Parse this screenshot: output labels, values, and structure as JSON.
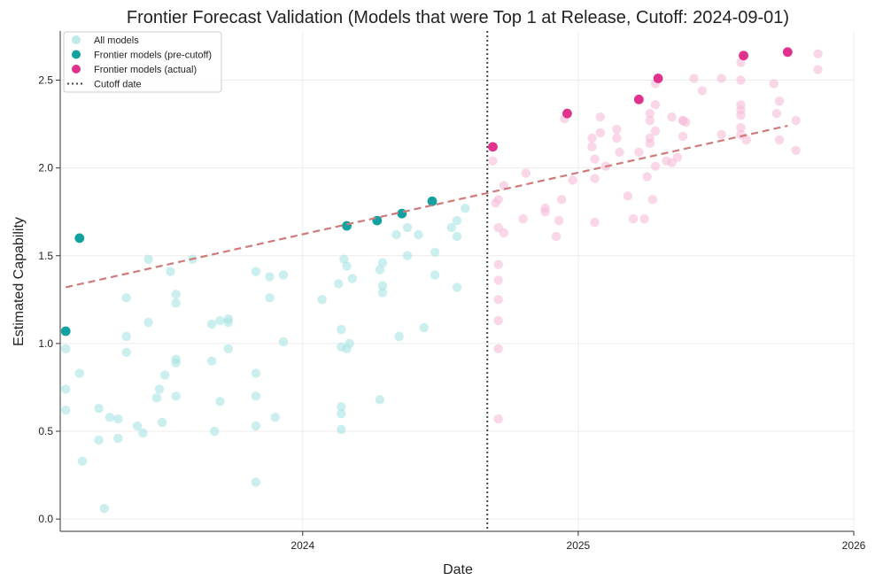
{
  "chart_data": {
    "type": "scatter",
    "title": "Frontier Forecast Validation (Models that were Top 1 at Release, Cutoff: 2024-09-01)",
    "xlabel": "Date",
    "ylabel": "Estimated Capability",
    "xlim": [
      2023.12,
      2026.0
    ],
    "ylim": [
      -0.07,
      2.78
    ],
    "x_ticks": [
      {
        "value": 2024.0,
        "label": "2024"
      },
      {
        "value": 2025.0,
        "label": "2025"
      },
      {
        "value": 2026.0,
        "label": "2026"
      }
    ],
    "y_ticks": [
      {
        "value": 0.0,
        "label": "0.0"
      },
      {
        "value": 0.5,
        "label": "0.5"
      },
      {
        "value": 1.0,
        "label": "1.0"
      },
      {
        "value": 1.5,
        "label": "1.5"
      },
      {
        "value": 2.0,
        "label": "2.0"
      },
      {
        "value": 2.5,
        "label": "2.5"
      }
    ],
    "grid": true,
    "legend_position": "top-left",
    "cutoff": {
      "x": 2024.67,
      "label": "Cutoff date"
    },
    "trend_line": {
      "x": [
        2023.14,
        2025.76
      ],
      "y": [
        1.32,
        2.24
      ]
    },
    "legend": [
      {
        "label": "All models",
        "color": "#a9e3e3",
        "style": "marker-light"
      },
      {
        "label": "Frontier models (pre-cutoff)",
        "color": "#12a1a1",
        "style": "marker"
      },
      {
        "label": "Frontier models (actual)",
        "color": "#e0328c",
        "style": "marker"
      },
      {
        "label": "Cutoff date",
        "color": "#444444",
        "style": "dotted-line"
      }
    ],
    "series": [
      {
        "name": "All models (pre-cutoff)",
        "color": "#a9e3e3",
        "points": [
          [
            2023.14,
            0.97
          ],
          [
            2023.14,
            0.74
          ],
          [
            2023.14,
            0.62
          ],
          [
            2023.19,
            0.83
          ],
          [
            2023.2,
            0.33
          ],
          [
            2023.26,
            0.63
          ],
          [
            2023.26,
            0.45
          ],
          [
            2023.28,
            0.06
          ],
          [
            2023.3,
            0.58
          ],
          [
            2023.33,
            0.46
          ],
          [
            2023.33,
            0.57
          ],
          [
            2023.36,
            1.26
          ],
          [
            2023.36,
            1.04
          ],
          [
            2023.36,
            0.95
          ],
          [
            2023.4,
            0.53
          ],
          [
            2023.42,
            0.49
          ],
          [
            2023.44,
            1.48
          ],
          [
            2023.44,
            1.12
          ],
          [
            2023.47,
            0.69
          ],
          [
            2023.48,
            0.74
          ],
          [
            2023.49,
            0.55
          ],
          [
            2023.5,
            0.82
          ],
          [
            2023.52,
            1.41
          ],
          [
            2023.54,
            1.28
          ],
          [
            2023.54,
            1.23
          ],
          [
            2023.54,
            0.91
          ],
          [
            2023.54,
            0.89
          ],
          [
            2023.54,
            0.7
          ],
          [
            2023.6,
            1.48
          ],
          [
            2023.67,
            1.11
          ],
          [
            2023.67,
            0.9
          ],
          [
            2023.68,
            0.5
          ],
          [
            2023.7,
            1.13
          ],
          [
            2023.7,
            0.67
          ],
          [
            2023.73,
            1.14
          ],
          [
            2023.73,
            1.12
          ],
          [
            2023.73,
            0.97
          ],
          [
            2023.83,
            1.41
          ],
          [
            2023.83,
            0.83
          ],
          [
            2023.83,
            0.7
          ],
          [
            2023.83,
            0.53
          ],
          [
            2023.83,
            0.21
          ],
          [
            2023.88,
            1.38
          ],
          [
            2023.88,
            1.26
          ],
          [
            2023.9,
            0.58
          ],
          [
            2023.93,
            1.39
          ],
          [
            2023.93,
            1.01
          ],
          [
            2024.07,
            1.25
          ],
          [
            2024.13,
            1.34
          ],
          [
            2024.14,
            1.08
          ],
          [
            2024.14,
            0.98
          ],
          [
            2024.14,
            0.64
          ],
          [
            2024.14,
            0.6
          ],
          [
            2024.14,
            0.51
          ],
          [
            2024.15,
            1.48
          ],
          [
            2024.16,
            1.44
          ],
          [
            2024.16,
            0.97
          ],
          [
            2024.17,
            1.0
          ],
          [
            2024.18,
            1.37
          ],
          [
            2024.28,
            0.68
          ],
          [
            2024.28,
            1.42
          ],
          [
            2024.29,
            1.46
          ],
          [
            2024.29,
            1.33
          ],
          [
            2024.29,
            1.29
          ],
          [
            2024.34,
            1.62
          ],
          [
            2024.35,
            1.04
          ],
          [
            2024.38,
            1.66
          ],
          [
            2024.38,
            1.5
          ],
          [
            2024.42,
            1.62
          ],
          [
            2024.44,
            1.09
          ],
          [
            2024.48,
            1.52
          ],
          [
            2024.48,
            1.39
          ],
          [
            2024.54,
            1.66
          ],
          [
            2024.56,
            1.7
          ],
          [
            2024.56,
            1.61
          ],
          [
            2024.56,
            1.32
          ],
          [
            2024.59,
            1.77
          ]
        ]
      },
      {
        "name": "All models (post-cutoff)",
        "color": "#f5bcd9",
        "points": [
          [
            2024.69,
            2.04
          ],
          [
            2024.7,
            1.8
          ],
          [
            2024.71,
            1.82
          ],
          [
            2024.71,
            1.66
          ],
          [
            2024.71,
            1.45
          ],
          [
            2024.71,
            1.36
          ],
          [
            2024.71,
            1.25
          ],
          [
            2024.71,
            1.13
          ],
          [
            2024.71,
            0.97
          ],
          [
            2024.71,
            0.57
          ],
          [
            2024.73,
            1.9
          ],
          [
            2024.73,
            1.63
          ],
          [
            2024.8,
            1.71
          ],
          [
            2024.81,
            1.97
          ],
          [
            2024.88,
            1.77
          ],
          [
            2024.88,
            1.75
          ],
          [
            2024.92,
            1.61
          ],
          [
            2024.93,
            1.7
          ],
          [
            2024.94,
            1.82
          ],
          [
            2024.95,
            2.28
          ],
          [
            2024.98,
            1.93
          ],
          [
            2025.05,
            2.17
          ],
          [
            2025.05,
            2.12
          ],
          [
            2025.06,
            1.69
          ],
          [
            2025.06,
            1.94
          ],
          [
            2025.06,
            2.05
          ],
          [
            2025.08,
            2.2
          ],
          [
            2025.08,
            2.29
          ],
          [
            2025.1,
            2.01
          ],
          [
            2025.14,
            2.22
          ],
          [
            2025.14,
            2.17
          ],
          [
            2025.15,
            2.09
          ],
          [
            2025.18,
            1.84
          ],
          [
            2025.2,
            1.71
          ],
          [
            2025.22,
            2.09
          ],
          [
            2025.24,
            1.71
          ],
          [
            2025.25,
            1.95
          ],
          [
            2025.26,
            2.31
          ],
          [
            2025.26,
            2.17
          ],
          [
            2025.26,
            2.14
          ],
          [
            2025.26,
            2.27
          ],
          [
            2025.27,
            1.82
          ],
          [
            2025.28,
            2.48
          ],
          [
            2025.28,
            2.36
          ],
          [
            2025.28,
            2.21
          ],
          [
            2025.28,
            2.01
          ],
          [
            2025.32,
            2.04
          ],
          [
            2025.34,
            2.03
          ],
          [
            2025.34,
            2.29
          ],
          [
            2025.36,
            2.06
          ],
          [
            2025.38,
            2.27
          ],
          [
            2025.38,
            2.27
          ],
          [
            2025.38,
            2.18
          ],
          [
            2025.39,
            2.26
          ],
          [
            2025.42,
            2.51
          ],
          [
            2025.45,
            2.44
          ],
          [
            2025.52,
            2.51
          ],
          [
            2025.52,
            2.19
          ],
          [
            2025.59,
            2.6
          ],
          [
            2025.59,
            2.5
          ],
          [
            2025.59,
            2.36
          ],
          [
            2025.59,
            2.33
          ],
          [
            2025.59,
            2.3
          ],
          [
            2025.59,
            2.23
          ],
          [
            2025.59,
            2.19
          ],
          [
            2025.61,
            2.16
          ],
          [
            2025.71,
            2.48
          ],
          [
            2025.72,
            2.31
          ],
          [
            2025.73,
            2.38
          ],
          [
            2025.73,
            2.16
          ],
          [
            2025.79,
            2.27
          ],
          [
            2025.79,
            2.1
          ],
          [
            2025.87,
            2.65
          ],
          [
            2025.87,
            2.56
          ]
        ]
      },
      {
        "name": "Frontier models (pre-cutoff)",
        "color": "#12a1a1",
        "points": [
          [
            2023.14,
            1.07
          ],
          [
            2023.19,
            1.6
          ],
          [
            2024.16,
            1.67
          ],
          [
            2024.27,
            1.7
          ],
          [
            2024.36,
            1.74
          ],
          [
            2024.47,
            1.81
          ]
        ]
      },
      {
        "name": "Frontier models (actual)",
        "color": "#e0328c",
        "points": [
          [
            2024.69,
            2.12
          ],
          [
            2024.96,
            2.31
          ],
          [
            2025.22,
            2.39
          ],
          [
            2025.29,
            2.51
          ],
          [
            2025.6,
            2.64
          ],
          [
            2025.76,
            2.66
          ]
        ]
      }
    ]
  }
}
